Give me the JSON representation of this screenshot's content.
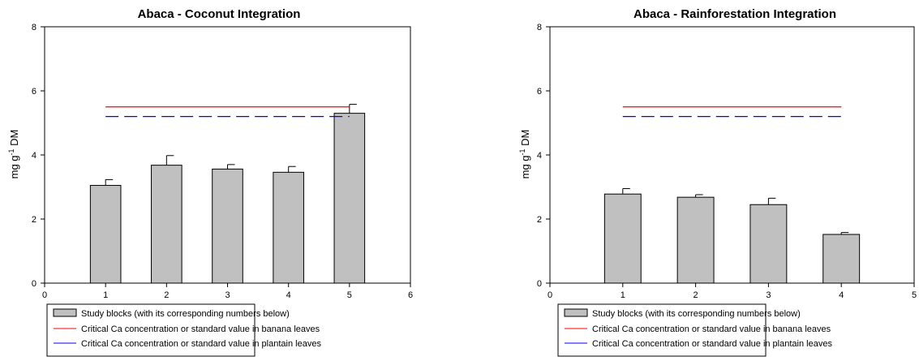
{
  "chart_data": [
    {
      "type": "bar",
      "title": "Abaca - Coconut Integration",
      "ylabel": "mg g-1 DM",
      "xlabel": "",
      "xlim": [
        0,
        6
      ],
      "ylim": [
        0,
        8
      ],
      "xticks": [
        0,
        1,
        2,
        3,
        4,
        5,
        6
      ],
      "yticks": [
        0,
        2,
        4,
        6,
        8
      ],
      "categories": [
        1,
        2,
        3,
        4,
        5
      ],
      "bar_width": 0.5,
      "series": [
        {
          "name": "Study blocks (with its corresponding numbers below)",
          "values": [
            3.05,
            3.68,
            3.56,
            3.46,
            5.3
          ],
          "errors": [
            0.18,
            0.3,
            0.14,
            0.18,
            0.28
          ]
        }
      ],
      "reference_lines": [
        {
          "name": "Critical Ca concentration or standard value in banana leaves",
          "y": 5.5,
          "x_from": 1,
          "x_to": 5,
          "style": "solid",
          "color": "#ff0000"
        },
        {
          "name": "Critical Ca concentration or standard value in plantain leaves",
          "y": 5.2,
          "x_from": 1,
          "x_to": 5,
          "style": "dashed",
          "color": "#0000ff"
        }
      ],
      "grid": false,
      "legend_position": "bottom-left"
    },
    {
      "type": "bar",
      "title": "Abaca - Rainforestation Integration",
      "ylabel": "mg g-1 DM",
      "xlabel": "",
      "xlim": [
        0,
        5
      ],
      "ylim": [
        0,
        8
      ],
      "xticks": [
        0,
        1,
        2,
        3,
        4,
        5
      ],
      "yticks": [
        0,
        2,
        4,
        6,
        8
      ],
      "categories": [
        1,
        2,
        3,
        4
      ],
      "bar_width": 0.5,
      "series": [
        {
          "name": "Study blocks (with its corresponding numbers below)",
          "values": [
            2.78,
            2.68,
            2.45,
            1.52
          ],
          "errors": [
            0.17,
            0.08,
            0.2,
            0.06
          ]
        }
      ],
      "reference_lines": [
        {
          "name": "Critical Ca concentration or standard value in banana leaves",
          "y": 5.5,
          "x_from": 1,
          "x_to": 4,
          "style": "solid",
          "color": "#ff0000"
        },
        {
          "name": "Critical Ca concentration or standard value in plantain leaves",
          "y": 5.2,
          "x_from": 1,
          "x_to": 4,
          "style": "dashed",
          "color": "#0000ff"
        }
      ],
      "grid": false,
      "legend_position": "bottom-left"
    }
  ],
  "colors": {
    "bar_fill": "#c0c0c0",
    "bar_stroke": "#000000",
    "banana_line": "#ff0000",
    "plantain_line": "#0000ff"
  }
}
